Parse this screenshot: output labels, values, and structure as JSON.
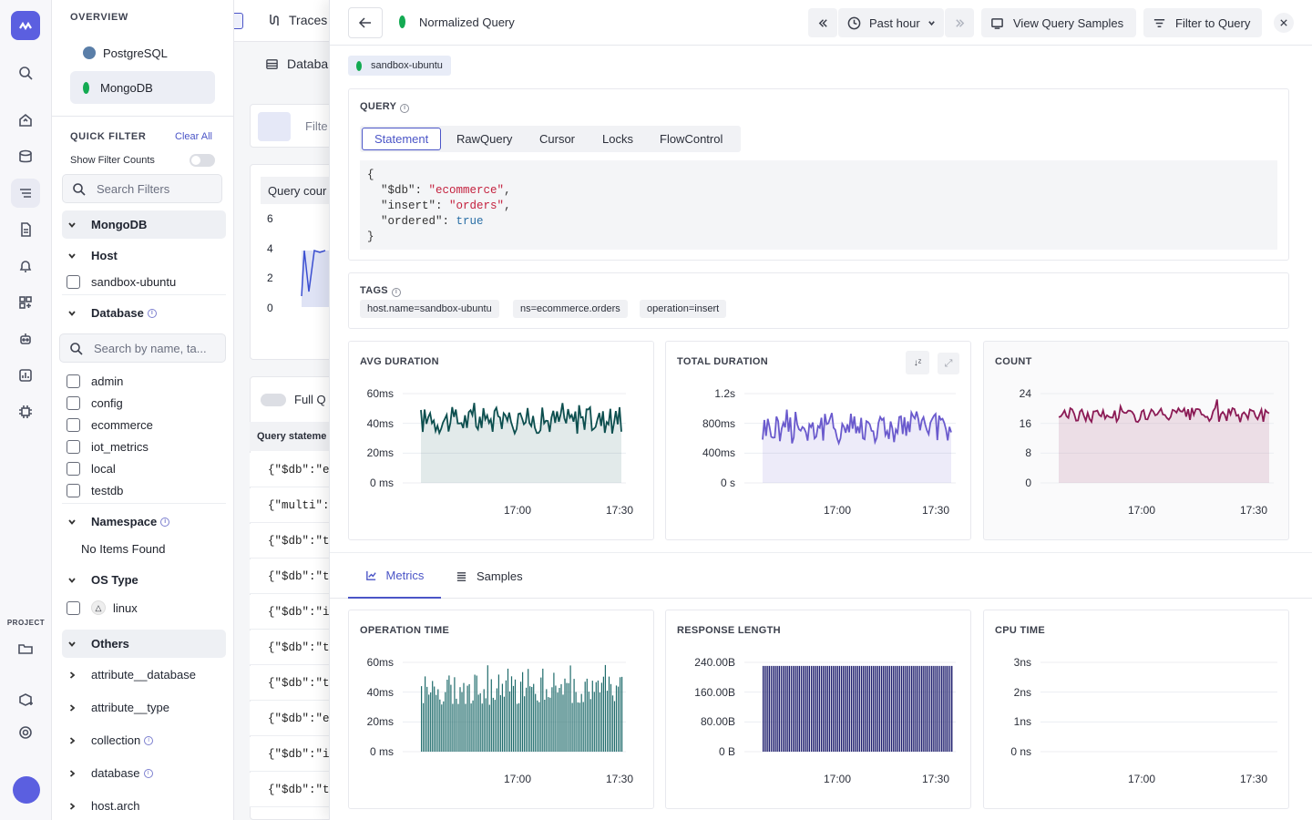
{
  "app": {
    "logo_alt": "logo"
  },
  "sidebar": {
    "overview_label": "OVERVIEW",
    "sources": [
      {
        "label": "PostgreSQL"
      },
      {
        "label": "MongoDB"
      }
    ],
    "quick_filter_label": "QUICK FILTER",
    "clear_all_label": "Clear All",
    "show_filter_counts_label": "Show Filter Counts",
    "search_filters_placeholder": "Search Filters",
    "mongodb_group": "MongoDB",
    "host_group": "Host",
    "host_items": [
      "sandbox-ubuntu"
    ],
    "database_group": "Database",
    "database_search_placeholder": "Search by name, ta...",
    "database_items": [
      "admin",
      "config",
      "ecommerce",
      "iot_metrics",
      "local",
      "testdb"
    ],
    "namespace_group": "Namespace",
    "namespace_empty": "No Items Found",
    "os_type_group": "OS Type",
    "os_items": [
      "linux"
    ],
    "others_group": "Others",
    "others_items": [
      "attribute__database",
      "attribute__type",
      "collection",
      "database",
      "host.arch"
    ],
    "project_label": "PROJECT"
  },
  "middle": {
    "traces_label": "Traces",
    "database_tab_label": "Databa",
    "filter_placeholder": "Filte",
    "query_count_label": "Query cour",
    "y_ticks": [
      "6",
      "4",
      "2",
      "0"
    ],
    "full_query_label": "Full Q",
    "query_statement_header": "Query stateme",
    "rows": [
      "{\"$db\":\"e",
      "{\"multi\":",
      "{\"$db\":\"t",
      "{\"$db\":\"t",
      "{\"$db\":\"i",
      "{\"$db\":\"t",
      "{\"$db\":\"t",
      "{\"$db\":\"e",
      "{\"$db\":\"i",
      "{\"$db\":\"t"
    ]
  },
  "panel": {
    "title": "Normalized Query",
    "time_range": "Past hour",
    "view_samples_label": "View Query Samples",
    "filter_to_query_label": "Filter to Query",
    "host_badge": "sandbox-ubuntu",
    "query_section_label": "QUERY",
    "query_tabs": [
      "Statement",
      "RawQuery",
      "Cursor",
      "Locks",
      "FlowControl"
    ],
    "code": {
      "open": "{",
      "db_key": "\"$db\"",
      "db_val": "\"ecommerce\"",
      "insert_key": "\"insert\"",
      "insert_val": "\"orders\"",
      "ordered_key": "\"ordered\"",
      "ordered_val": "true",
      "close": "}"
    },
    "tags_label": "TAGS",
    "tags": [
      "host.name=sandbox-ubuntu",
      "ns=ecommerce.orders",
      "operation=insert"
    ],
    "bottom_tabs": [
      "Metrics",
      "Samples"
    ],
    "colors": {
      "avg": "#0d4f4f",
      "total": "#6a5acd",
      "count": "#8b1a55",
      "opt": "#1f6b6b",
      "resp": "#1e1e6e",
      "accent": "#4b55c7"
    }
  },
  "chart_data": [
    {
      "type": "line",
      "title": "AVG DURATION",
      "ylabels": [
        "60ms",
        "40ms",
        "20ms",
        "0 ms"
      ],
      "xlabels": [
        "17:00",
        "17:30"
      ],
      "ylim": [
        0,
        60
      ]
    },
    {
      "type": "line",
      "title": "TOTAL DURATION",
      "ylabels": [
        "1.2s",
        "800ms",
        "400ms",
        "0 s"
      ],
      "xlabels": [
        "17:00",
        "17:30"
      ],
      "ylim": [
        0,
        1200
      ]
    },
    {
      "type": "line",
      "title": "COUNT",
      "ylabels": [
        "24",
        "16",
        "8",
        "0"
      ],
      "xlabels": [
        "17:00",
        "17:30"
      ],
      "ylim": [
        0,
        24
      ]
    },
    {
      "type": "bar",
      "title": "OPERATION TIME",
      "ylabels": [
        "60ms",
        "40ms",
        "20ms",
        "0 ms"
      ],
      "xlabels": [
        "17:00",
        "17:30"
      ],
      "ylim": [
        0,
        60
      ]
    },
    {
      "type": "bar",
      "title": "RESPONSE LENGTH",
      "ylabels": [
        "240.00B",
        "160.00B",
        "80.00B",
        "0 B"
      ],
      "xlabels": [
        "17:00",
        "17:30"
      ],
      "ylim": [
        0,
        240
      ]
    },
    {
      "type": "line",
      "title": "CPU TIME",
      "ylabels": [
        "3ns",
        "2ns",
        "1ns",
        "0 ns"
      ],
      "xlabels": [
        "17:00",
        "17:30"
      ],
      "ylim": [
        0,
        3
      ]
    }
  ]
}
